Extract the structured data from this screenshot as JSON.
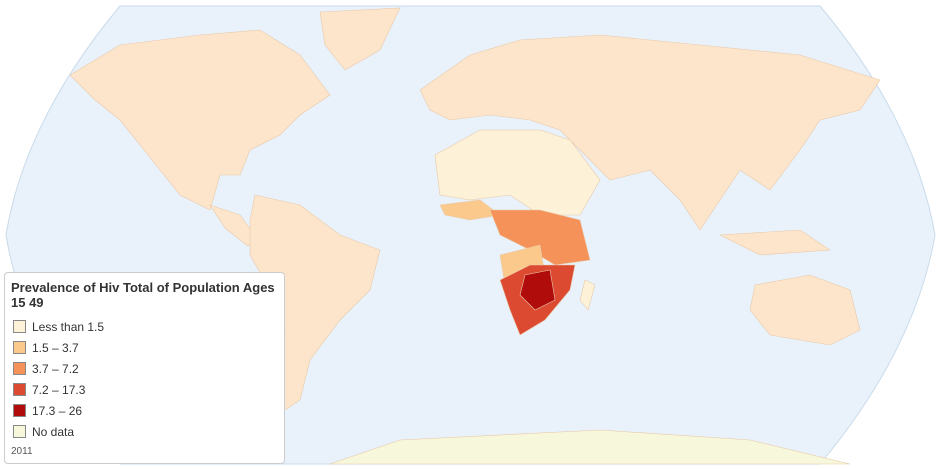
{
  "legend": {
    "title": "Prevalence of Hiv Total of Population Ages 15 49",
    "items": [
      {
        "label": "Less than 1.5",
        "color": "#fdf1d8"
      },
      {
        "label": "1.5 – 3.7",
        "color": "#fcc98d"
      },
      {
        "label": "3.7 – 7.2",
        "color": "#f5925a"
      },
      {
        "label": "7.2 – 17.3",
        "color": "#dc4a32"
      },
      {
        "label": "17.3 – 26",
        "color": "#b00c0c"
      },
      {
        "label": "No data",
        "color": "#f7f7dc"
      }
    ],
    "note": "2011"
  }
}
